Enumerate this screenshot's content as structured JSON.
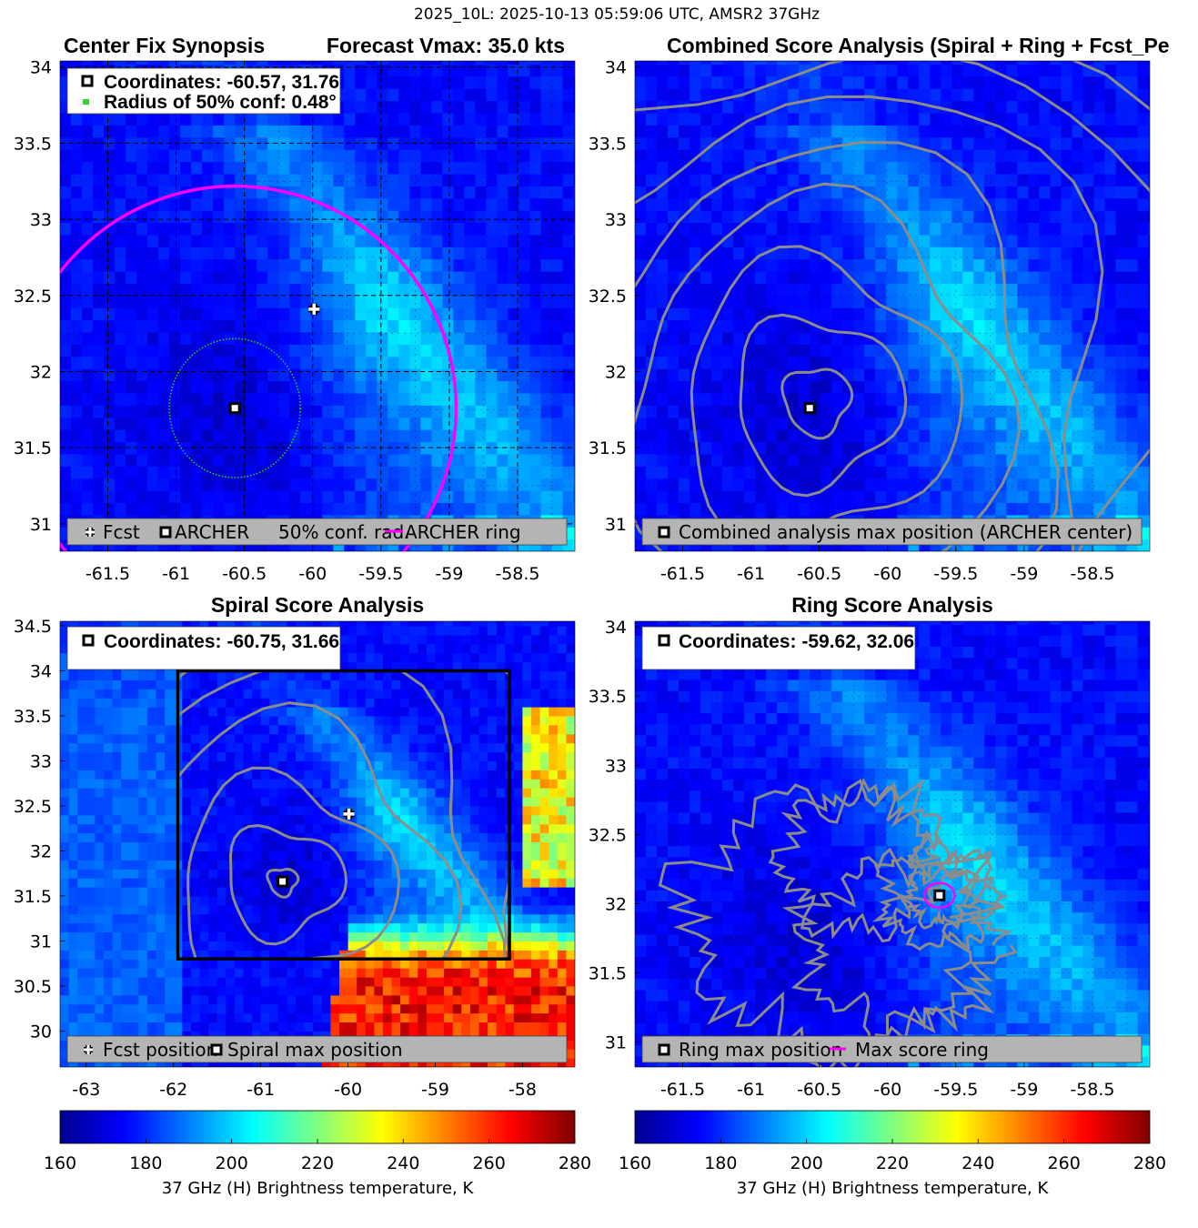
{
  "suptitle": "2025_10L: 2025-10-13 05:59:06 UTC, AMSR2 37GHz",
  "colors": {
    "contour": "#8c8c8c",
    "archer_ring": "#ff00ff",
    "conf_circle": "#22dd22",
    "legend_bg": "#b4b4b4",
    "info_bg": "#ffffff"
  },
  "panels": [
    {
      "id": "center-fix",
      "title_left": "Center Fix Synopsis",
      "title_right": "Forecast Vmax: 35.0 kts",
      "info_lines": [
        "Coordinates: -60.57, 31.76",
        "Radius of 50% conf: 0.48°"
      ],
      "legend_items": [
        "Fcst",
        "ARCHER",
        "50% conf. rad.",
        "ARCHER ring"
      ]
    },
    {
      "id": "combined",
      "title": "Combined Score Analysis (Spiral + Ring + Fcst_Pe",
      "legend_items": [
        "Combined analysis max position (ARCHER center)"
      ]
    },
    {
      "id": "spiral",
      "title": "Spiral Score Analysis",
      "info_lines": [
        "Coordinates: -60.75, 31.66"
      ],
      "legend_items": [
        "Fcst position",
        "Spiral max position"
      ]
    },
    {
      "id": "ring",
      "title": "Ring Score Analysis",
      "info_lines": [
        "Coordinates: -59.62, 32.06"
      ],
      "legend_items": [
        "Ring max position",
        "Max score ring"
      ]
    }
  ],
  "colorbars": [
    {
      "ticks": [
        "160",
        "180",
        "200",
        "220",
        "240",
        "260",
        "280"
      ],
      "label": "37 GHz (H) Brightness temperature, K"
    },
    {
      "ticks": [
        "160",
        "180",
        "200",
        "220",
        "240",
        "260",
        "280"
      ],
      "label": "37 GHz (H) Brightness temperature, K"
    }
  ],
  "chart_data": [
    {
      "type": "heatmap",
      "title": "Center Fix Synopsis",
      "subtitle": "Forecast Vmax: 35.0 kts",
      "xlim": [
        -61.85,
        -58.08
      ],
      "ylim": [
        30.82,
        34.04
      ],
      "xticks": [
        "-61.5",
        "-61",
        "-60.5",
        "-60",
        "-59.5",
        "-59",
        "-58.5"
      ],
      "yticks": [
        "31",
        "31.5",
        "32",
        "32.5",
        "33",
        "33.5",
        "34"
      ],
      "xticks_num": [
        -61.5,
        -61,
        -60.5,
        -60,
        -59.5,
        -59,
        -58.5
      ],
      "yticks_num": [
        31,
        31.5,
        32,
        32.5,
        33,
        33.5,
        34
      ],
      "clim": [
        160,
        280
      ],
      "grid": true,
      "fcst_position": [
        -59.99,
        32.41
      ],
      "archer_center": [
        -60.57,
        31.76
      ],
      "conf_radius_deg": 0.48,
      "archer_ring": {
        "center": [
          -60.57,
          31.76
        ],
        "radius_deg": 1.62
      },
      "legend": [
        "Fcst",
        "ARCHER",
        "50% conf. rad.",
        "ARCHER ring"
      ]
    },
    {
      "type": "heatmap",
      "title": "Combined Score Analysis (Spiral + Ring + Fcst_Pe",
      "xlim": [
        -61.85,
        -58.08
      ],
      "ylim": [
        30.82,
        34.04
      ],
      "xticks": [
        "-61.5",
        "-61",
        "-60.5",
        "-60",
        "-59.5",
        "-59",
        "-58.5"
      ],
      "yticks": [
        "31",
        "31.5",
        "32",
        "32.5",
        "33",
        "33.5",
        "34"
      ],
      "xticks_num": [
        -61.5,
        -61,
        -60.5,
        -60,
        -59.5,
        -59,
        -58.5
      ],
      "yticks_num": [
        31,
        31.5,
        32,
        32.5,
        33,
        33.5,
        34
      ],
      "clim": [
        160,
        280
      ],
      "max_position": [
        -60.57,
        31.76
      ],
      "legend": [
        "Combined analysis max position (ARCHER center)"
      ]
    },
    {
      "type": "heatmap",
      "title": "Spiral Score Analysis",
      "xlim": [
        -63.3,
        -57.4
      ],
      "ylim": [
        29.6,
        34.55
      ],
      "xticks": [
        "-63",
        "-62",
        "-61",
        "-60",
        "-59",
        "-58"
      ],
      "yticks": [
        "30",
        "30.5",
        "31",
        "31.5",
        "32",
        "32.5",
        "33",
        "33.5",
        "34",
        "34.5"
      ],
      "xticks_num": [
        -63,
        -62,
        -61,
        -60,
        -59,
        -58
      ],
      "yticks_num": [
        30,
        30.5,
        31,
        31.5,
        32,
        32.5,
        33,
        33.5,
        34,
        34.5
      ],
      "clim": [
        160,
        280
      ],
      "search_box": {
        "lon": [
          -61.95,
          -58.15
        ],
        "lat": [
          30.8,
          34.0
        ]
      },
      "fcst_position": [
        -59.99,
        32.41
      ],
      "max_position": [
        -60.75,
        31.66
      ],
      "legend": [
        "Fcst position",
        "Spiral max position"
      ]
    },
    {
      "type": "heatmap",
      "title": "Ring Score Analysis",
      "xlim": [
        -61.85,
        -58.08
      ],
      "ylim": [
        30.82,
        34.04
      ],
      "xticks": [
        "-61.5",
        "-61",
        "-60.5",
        "-60",
        "-59.5",
        "-59",
        "-58.5"
      ],
      "yticks": [
        "31",
        "31.5",
        "32",
        "32.5",
        "33",
        "33.5",
        "34"
      ],
      "xticks_num": [
        -61.5,
        -61,
        -60.5,
        -60,
        -59.5,
        -59,
        -58.5
      ],
      "yticks_num": [
        31,
        31.5,
        32,
        32.5,
        33,
        33.5,
        34
      ],
      "clim": [
        160,
        280
      ],
      "max_position": [
        -59.62,
        32.06
      ],
      "max_score_ring": {
        "center": [
          -59.62,
          32.06
        ],
        "radius_deg": 0.1
      },
      "legend": [
        "Ring max position",
        "Max score ring"
      ]
    }
  ]
}
